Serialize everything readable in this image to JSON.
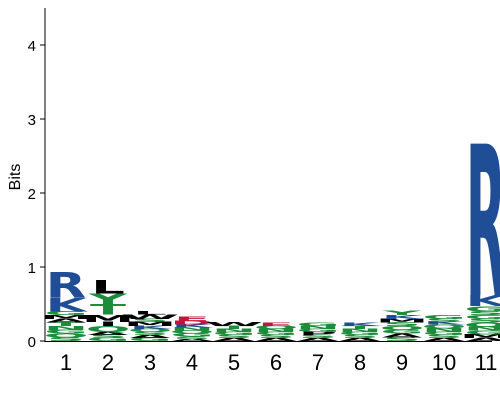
{
  "chart_data": {
    "type": "sequence-logo",
    "ylabel": "Bits",
    "xlabel": "",
    "ylim": [
      0,
      4.5
    ],
    "yticks": [
      "0",
      "1",
      "2",
      "3",
      "4"
    ],
    "positions": [
      {
        "label": "1",
        "stack": [
          {
            "l": "S",
            "v": 0.05
          },
          {
            "l": "Q",
            "v": 0.05
          },
          {
            "l": "G",
            "v": 0.05
          },
          {
            "l": "N",
            "v": 0.05
          },
          {
            "l": "T",
            "v": 0.05
          },
          {
            "l": "A",
            "v": 0.05
          },
          {
            "l": "M",
            "v": 0.05
          },
          {
            "l": "G",
            "v": 0.05
          },
          {
            "l": "K",
            "v": 0.18
          },
          {
            "l": "R",
            "v": 0.35
          }
        ]
      },
      {
        "label": "2",
        "stack": [
          {
            "l": "G",
            "v": 0.04
          },
          {
            "l": "S",
            "v": 0.04
          },
          {
            "l": "A",
            "v": 0.04
          },
          {
            "l": "Q",
            "v": 0.08
          },
          {
            "l": "I",
            "v": 0.06
          },
          {
            "l": "M",
            "v": 0.1
          },
          {
            "l": "T",
            "v": 0.14
          },
          {
            "l": "Y",
            "v": 0.14
          },
          {
            "l": "L",
            "v": 0.18
          }
        ]
      },
      {
        "label": "3",
        "stack": [
          {
            "l": "G",
            "v": 0.04
          },
          {
            "l": "A",
            "v": 0.04
          },
          {
            "l": "S",
            "v": 0.04
          },
          {
            "l": "Q",
            "v": 0.04
          },
          {
            "l": "K",
            "v": 0.04
          },
          {
            "l": "M",
            "v": 0.06
          },
          {
            "l": "S",
            "v": 0.04
          },
          {
            "l": "W",
            "v": 0.06
          },
          {
            "l": "L",
            "v": 0.04
          }
        ]
      },
      {
        "label": "4",
        "stack": [
          {
            "l": "A",
            "v": 0.03
          },
          {
            "l": "S",
            "v": 0.03
          },
          {
            "l": "G",
            "v": 0.04
          },
          {
            "l": "Q",
            "v": 0.04
          },
          {
            "l": "N",
            "v": 0.04
          },
          {
            "l": "K",
            "v": 0.04
          },
          {
            "l": "D",
            "v": 0.05
          },
          {
            "l": "E",
            "v": 0.06
          }
        ]
      },
      {
        "label": "5",
        "stack": [
          {
            "l": "A",
            "v": 0.04
          },
          {
            "l": "S",
            "v": 0.04
          },
          {
            "l": "G",
            "v": 0.04
          },
          {
            "l": "N",
            "v": 0.04
          },
          {
            "l": "T",
            "v": 0.04
          },
          {
            "l": "W",
            "v": 0.05
          }
        ]
      },
      {
        "label": "6",
        "stack": [
          {
            "l": "A",
            "v": 0.04
          },
          {
            "l": "S",
            "v": 0.04
          },
          {
            "l": "G",
            "v": 0.04
          },
          {
            "l": "N",
            "v": 0.04
          },
          {
            "l": "Q",
            "v": 0.04
          },
          {
            "l": "E",
            "v": 0.04
          }
        ]
      },
      {
        "label": "7",
        "stack": [
          {
            "l": "A",
            "v": 0.04
          },
          {
            "l": "S",
            "v": 0.04
          },
          {
            "l": "P",
            "v": 0.04
          },
          {
            "l": "G",
            "v": 0.04
          },
          {
            "l": "N",
            "v": 0.04
          },
          {
            "l": "G",
            "v": 0.04
          }
        ]
      },
      {
        "label": "8",
        "stack": [
          {
            "l": "A",
            "v": 0.04
          },
          {
            "l": "S",
            "v": 0.04
          },
          {
            "l": "G",
            "v": 0.04
          },
          {
            "l": "N",
            "v": 0.04
          },
          {
            "l": "T",
            "v": 0.04
          },
          {
            "l": "K",
            "v": 0.04
          }
        ]
      },
      {
        "label": "9",
        "stack": [
          {
            "l": "S",
            "v": 0.05
          },
          {
            "l": "A",
            "v": 0.05
          },
          {
            "l": "G",
            "v": 0.05
          },
          {
            "l": "Q",
            "v": 0.05
          },
          {
            "l": "S",
            "v": 0.05
          },
          {
            "l": "M",
            "v": 0.05
          },
          {
            "l": "K",
            "v": 0.05
          },
          {
            "l": "Y",
            "v": 0.06
          }
        ]
      },
      {
        "label": "10",
        "stack": [
          {
            "l": "A",
            "v": 0.04
          },
          {
            "l": "S",
            "v": 0.04
          },
          {
            "l": "G",
            "v": 0.04
          },
          {
            "l": "N",
            "v": 0.05
          },
          {
            "l": "Q",
            "v": 0.05
          },
          {
            "l": "K",
            "v": 0.04
          },
          {
            "l": "S",
            "v": 0.04
          },
          {
            "l": "G",
            "v": 0.05
          }
        ]
      },
      {
        "label": "11",
        "stack": [
          {
            "l": "A",
            "v": 0.04
          },
          {
            "l": "M",
            "v": 0.05
          },
          {
            "l": "G",
            "v": 0.05
          },
          {
            "l": "N",
            "v": 0.05
          },
          {
            "l": "Q",
            "v": 0.06
          },
          {
            "l": "S",
            "v": 0.05
          },
          {
            "l": "G",
            "v": 0.05
          },
          {
            "l": "S",
            "v": 0.05
          },
          {
            "l": "G",
            "v": 0.07
          },
          {
            "l": "K",
            "v": 0.15
          },
          {
            "l": "R",
            "v": 2.05
          }
        ]
      }
    ],
    "colors": {
      "basic": "#1f4e96",
      "hydrophobic": "#000000",
      "polar": "#1a8c3a",
      "acidic": "#c4123a",
      "neutral": "#7a2fa0"
    }
  }
}
